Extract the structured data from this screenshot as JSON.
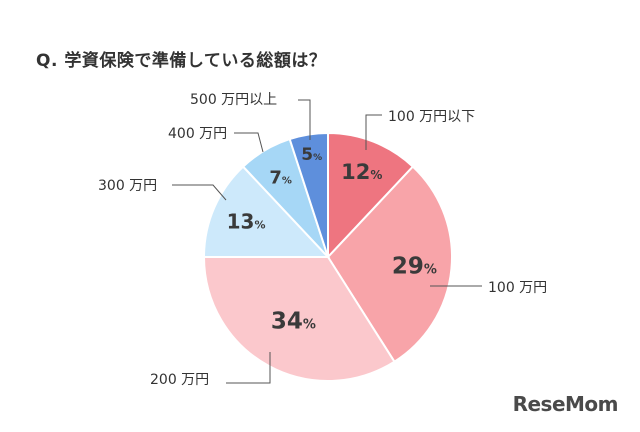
{
  "chart_data": {
    "type": "pie",
    "title": "Q. 学資保険で準備している総額は？",
    "categories": [
      "100 万円以下",
      "100 万円",
      "200 万円",
      "300 万円",
      "400 万円",
      "500 万円以上"
    ],
    "values": [
      12,
      29,
      34,
      13,
      7,
      5
    ],
    "unit": "%",
    "colors": [
      "#ee7580",
      "#f8a4a9",
      "#fbc8cc",
      "#cde9fb",
      "#a6d7f6",
      "#5e8fdc"
    ],
    "legend": "none",
    "start_angle_deg": 0,
    "direction": "clockwise"
  },
  "watermark": "ReseMom"
}
